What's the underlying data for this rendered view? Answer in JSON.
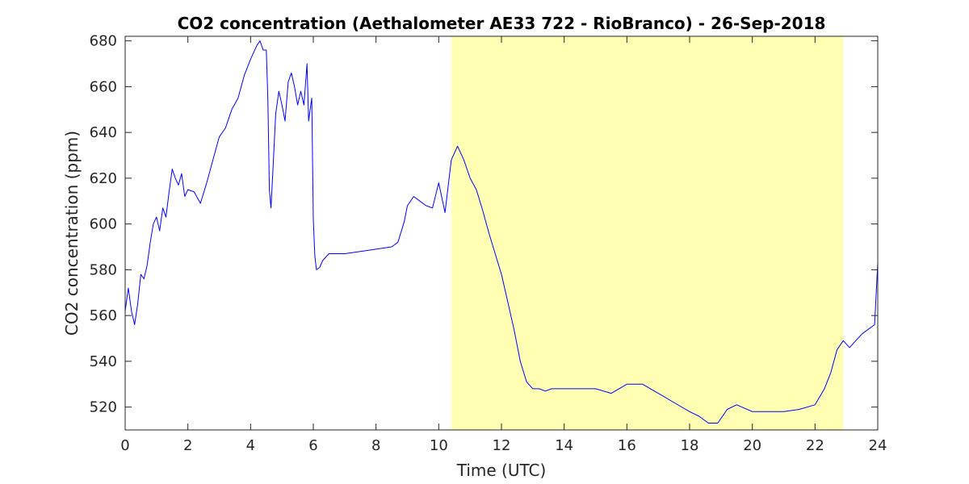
{
  "chart_data": {
    "type": "line",
    "title": "CO2 concentration (Aethalometer AE33 722 - RioBranco) - 26-Sep-2018",
    "xlabel": "Time (UTC)",
    "ylabel": "CO2 concentration (ppm)",
    "xlim": [
      0,
      24
    ],
    "ylim": [
      510,
      682
    ],
    "xticks": [
      0,
      2,
      4,
      6,
      8,
      10,
      12,
      14,
      16,
      18,
      20,
      22,
      24
    ],
    "yticks": [
      520,
      540,
      560,
      580,
      600,
      620,
      640,
      660,
      680
    ],
    "grid": false,
    "line_color": "#0000ff",
    "highlight": {
      "x_start": 10.4,
      "x_end": 22.9,
      "color": "#ffffb3"
    },
    "series": [
      {
        "x": [
          0,
          0.1,
          0.2,
          0.3,
          0.4,
          0.5,
          0.6,
          0.7,
          0.8,
          0.9,
          1.0,
          1.1,
          1.2,
          1.3,
          1.4,
          1.5,
          1.6,
          1.7,
          1.8,
          1.9,
          2.0,
          2.2,
          2.4,
          2.6,
          2.8,
          3.0,
          3.2,
          3.4,
          3.6,
          3.8,
          4.0,
          4.1,
          4.2,
          4.3,
          4.4,
          4.5,
          4.55,
          4.6,
          4.65,
          4.7,
          4.8,
          4.9,
          5.0,
          5.1,
          5.2,
          5.3,
          5.4,
          5.5,
          5.6,
          5.7,
          5.8,
          5.85,
          5.9,
          5.95,
          6.0,
          6.05,
          6.1,
          6.2,
          6.3,
          6.5,
          7.0,
          7.5,
          8.0,
          8.5,
          8.7,
          8.9,
          9.0,
          9.2,
          9.4,
          9.6,
          9.8,
          10.0,
          10.2,
          10.4,
          10.6,
          10.8,
          11.0,
          11.2,
          11.4,
          11.6,
          11.8,
          12.0,
          12.2,
          12.4,
          12.6,
          12.8,
          13.0,
          13.2,
          13.4,
          13.6,
          14.0,
          14.5,
          15.0,
          15.5,
          16.0,
          16.5,
          17.0,
          17.5,
          18.0,
          18.3,
          18.6,
          18.9,
          19.2,
          19.5,
          20.0,
          20.5,
          21.0,
          21.5,
          22.0,
          22.3,
          22.5,
          22.7,
          22.9,
          23.1,
          23.3,
          23.5,
          23.7,
          23.9,
          24.0
        ],
        "y": [
          562,
          572,
          562,
          556,
          565,
          578,
          576,
          582,
          592,
          600,
          603,
          597,
          607,
          603,
          614,
          624,
          620,
          617,
          622,
          612,
          615,
          614,
          609,
          618,
          628,
          638,
          642,
          650,
          655,
          665,
          672,
          675,
          678,
          680,
          676,
          676,
          655,
          615,
          607,
          620,
          648,
          658,
          652,
          645,
          662,
          666,
          660,
          652,
          658,
          652,
          670,
          645,
          650,
          655,
          602,
          586,
          580,
          581,
          584,
          587,
          587,
          588,
          589,
          590,
          592,
          601,
          608,
          612,
          610,
          608,
          607,
          618,
          605,
          628,
          634,
          628,
          620,
          615,
          606,
          596,
          587,
          578,
          566,
          554,
          540,
          531,
          528,
          528,
          527,
          528,
          528,
          528,
          528,
          526,
          530,
          530,
          526,
          522,
          518,
          516,
          513,
          513,
          519,
          521,
          518,
          518,
          518,
          519,
          521,
          528,
          535,
          545,
          549,
          546,
          549,
          552,
          554,
          556,
          583
        ]
      }
    ]
  }
}
